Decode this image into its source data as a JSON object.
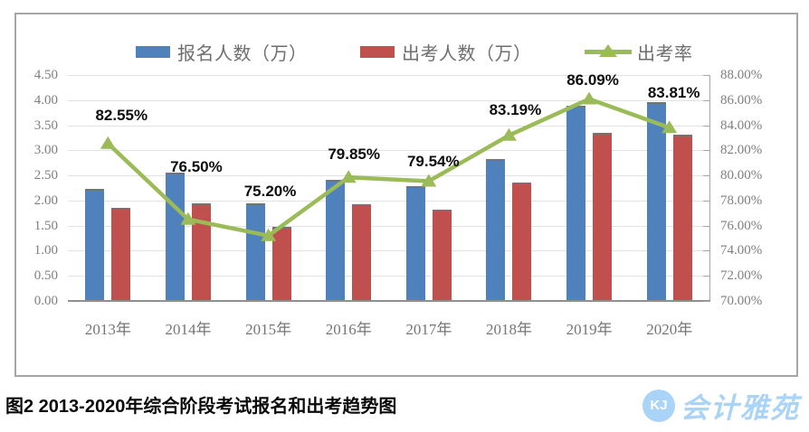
{
  "chart_data": {
    "type": "bar",
    "combo": "bars + line (secondary percentage axis)",
    "categories": [
      "2013年",
      "2014年",
      "2015年",
      "2016年",
      "2017年",
      "2018年",
      "2019年",
      "2020年"
    ],
    "series": [
      {
        "name": "报名人数（万）",
        "type": "bar",
        "color": "#4F81BD",
        "axis": "left",
        "values": [
          2.24,
          2.55,
          1.95,
          2.42,
          2.28,
          2.82,
          3.88,
          3.96
        ]
      },
      {
        "name": "出考人数（万）",
        "type": "bar",
        "color": "#C0504D",
        "axis": "left",
        "values": [
          1.85,
          1.95,
          1.47,
          1.93,
          1.81,
          2.35,
          3.34,
          3.32
        ]
      },
      {
        "name": "出考率",
        "type": "line",
        "color": "#9BBB59",
        "axis": "right",
        "values": [
          82.55,
          76.5,
          75.2,
          79.85,
          79.54,
          83.19,
          86.09,
          83.81
        ],
        "point_labels": [
          "82.55%",
          "76.50%",
          "75.20%",
          "79.85%",
          "79.54%",
          "83.19%",
          "86.09%",
          "83.81%"
        ]
      }
    ],
    "left_axis": {
      "min": 0,
      "max": 4.5,
      "step": 0.5,
      "tick_labels": [
        "0.00",
        "0.50",
        "1.00",
        "1.50",
        "2.00",
        "2.50",
        "3.00",
        "3.50",
        "4.00",
        "4.50"
      ]
    },
    "right_axis": {
      "min": 70,
      "max": 88,
      "step": 2,
      "tick_labels": [
        "70.00%",
        "72.00%",
        "74.00%",
        "76.00%",
        "78.00%",
        "80.00%",
        "82.00%",
        "84.00%",
        "86.00%",
        "88.00%"
      ]
    },
    "grid": true,
    "legend_position": "top",
    "title": ""
  },
  "caption": "图2  2013-2020年综合阶段考试报名和出考趋势图",
  "watermark": {
    "logo_monogram": "KJ",
    "brand_name": "会计雅苑",
    "color": "#A9D4F8"
  }
}
